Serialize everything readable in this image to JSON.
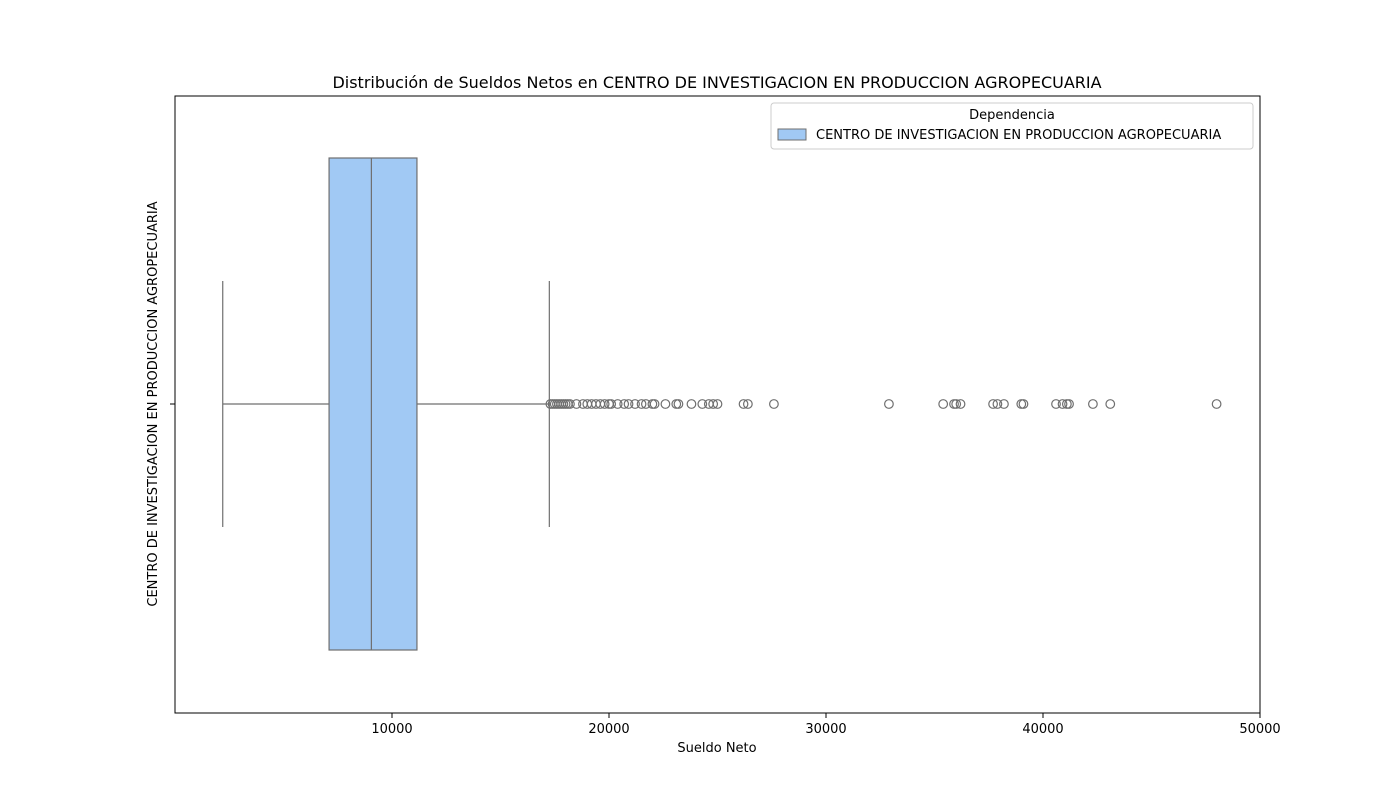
{
  "chart_data": {
    "type": "box",
    "orientation": "horizontal",
    "title": "Distribución de Sueldos Netos en CENTRO DE INVESTIGACION EN PRODUCCION AGROPECUARIA",
    "xlabel": "Sueldo Neto",
    "ylabel": "CENTRO DE INVESTIGACION EN PRODUCCION AGROPECUARIA",
    "xlim": [
      0,
      50000
    ],
    "xticks": [
      10000,
      20000,
      30000,
      40000,
      50000
    ],
    "grid": false,
    "legend": {
      "title": "Dependencia",
      "placement": "top-right",
      "entries": [
        "CENTRO DE INVESTIGACION EN PRODUCCION AGROPECUARIA"
      ]
    },
    "series": [
      {
        "category": "CENTRO DE INVESTIGACION EN PRODUCCION AGROPECUARIA",
        "color": "#a1c9f4",
        "edge_color": "#6f6f6f",
        "whisker_low": 2200,
        "q1": 7100,
        "median": 9050,
        "q3": 11150,
        "whisker_high": 17250,
        "outliers": [
          17300,
          17400,
          17500,
          17600,
          17700,
          17800,
          17900,
          18000,
          18100,
          18200,
          18500,
          18800,
          19000,
          19200,
          19400,
          19600,
          19800,
          20000,
          20100,
          20400,
          20700,
          20900,
          21200,
          21500,
          21700,
          22000,
          22100,
          22600,
          23100,
          23200,
          23800,
          24300,
          24600,
          24800,
          25000,
          26200,
          26400,
          27600,
          32900,
          35400,
          35900,
          36000,
          36200,
          37700,
          37900,
          38200,
          39000,
          39100,
          40600,
          40900,
          41100,
          41200,
          42300,
          43100,
          48000
        ]
      }
    ]
  }
}
